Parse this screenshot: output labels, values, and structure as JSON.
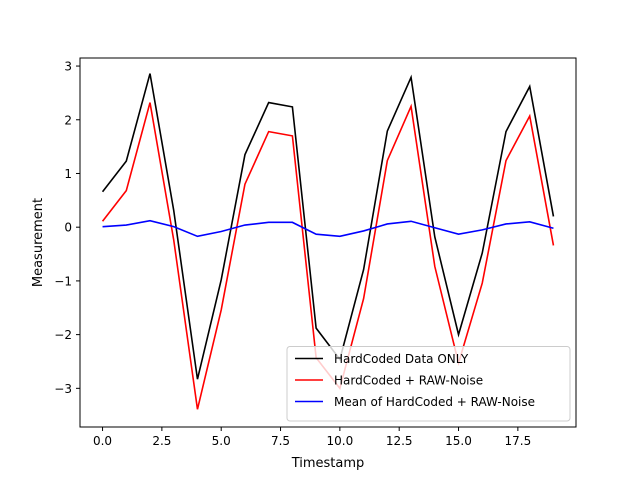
{
  "chart_data": {
    "type": "line",
    "title": "",
    "xlabel": "Timestamp",
    "ylabel": "Measurement",
    "xlim": [
      -0.95,
      19.95
    ],
    "ylim": [
      -3.72,
      3.15
    ],
    "xticks": [
      0,
      2.5,
      5,
      7.5,
      10,
      12.5,
      15,
      17.5
    ],
    "xtick_labels": [
      "0.0",
      "2.5",
      "5.0",
      "7.5",
      "10.0",
      "12.5",
      "15.0",
      "17.5"
    ],
    "yticks": [
      -3,
      -2,
      -1,
      0,
      1,
      2,
      3
    ],
    "ytick_labels": [
      "−3",
      "−2",
      "−1",
      "0",
      "1",
      "2",
      "3"
    ],
    "grid": false,
    "legend_position": "lower-right",
    "x": [
      0,
      1,
      2,
      3,
      4,
      5,
      6,
      7,
      8,
      9,
      10,
      11,
      12,
      13,
      14,
      15,
      16,
      17,
      18,
      19
    ],
    "series": [
      {
        "name": "HardCoded Data ONLY",
        "color": "#000000",
        "values": [
          0.66,
          1.23,
          2.86,
          0.31,
          -2.83,
          -0.98,
          1.35,
          2.32,
          2.24,
          -1.88,
          -2.46,
          -0.79,
          1.79,
          2.79,
          -0.18,
          -2.0,
          -0.48,
          1.78,
          2.62,
          0.2
        ]
      },
      {
        "name": "HardCoded + RAW-Noise",
        "color": "#ff0000",
        "values": [
          0.11,
          0.68,
          2.32,
          -0.24,
          -3.39,
          -1.54,
          0.8,
          1.78,
          1.7,
          -2.43,
          -3.0,
          -1.33,
          1.24,
          2.25,
          -0.73,
          -2.53,
          -1.04,
          1.24,
          2.07,
          -0.34
        ]
      },
      {
        "name": "Mean of HardCoded + RAW-Noise",
        "color": "#0000ff",
        "values": [
          0.01,
          0.04,
          0.12,
          0.01,
          -0.17,
          -0.08,
          0.04,
          0.09,
          0.09,
          -0.13,
          -0.17,
          -0.07,
          0.06,
          0.11,
          -0.01,
          -0.13,
          -0.05,
          0.06,
          0.1,
          -0.02
        ]
      }
    ]
  }
}
